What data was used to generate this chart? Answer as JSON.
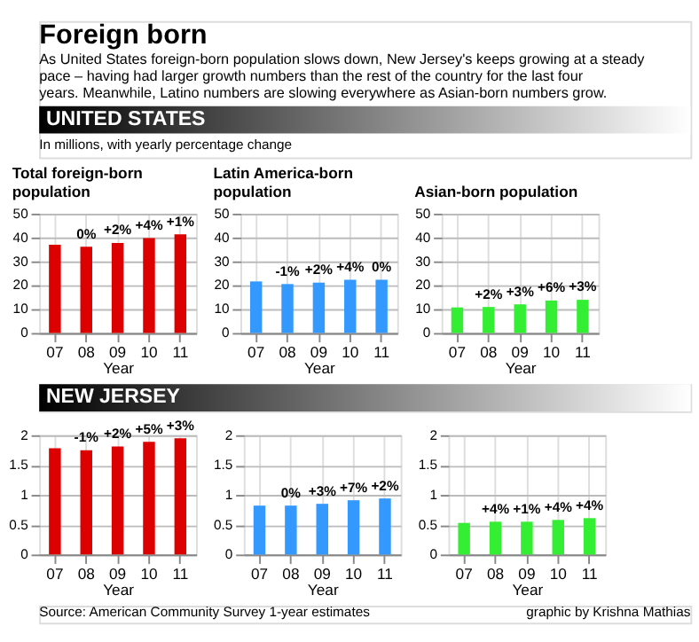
{
  "chart_data": [
    {
      "type": "bar",
      "title": "Total foreign-born population",
      "xlabel": "Year",
      "categories": [
        "07",
        "08",
        "09",
        "10",
        "11"
      ],
      "values": [
        37.0,
        36.1,
        37.7,
        39.8,
        41.3
      ],
      "color": "#dd0000",
      "ylim": [
        0,
        50
      ],
      "yticks": [
        0,
        10,
        20,
        30,
        40,
        50
      ],
      "grid": true,
      "annotations": [
        "Foreign born",
        "As United States foreign-born population slows down, New Jersey's keeps growing at a steady pace – having had larger growth numbers than the rest of the country for the last four years. Meanwhile, Latino numbers are slowing everywhere as Asian-born numbers grow.",
        "UNITED STATES",
        "In millions, with yearly percentage change",
        {
          "text": "0%",
          "x": "08",
          "y": 36.1
        },
        {
          "text": "+2%",
          "x": "09",
          "y": 37.7
        },
        {
          "text": "+4%",
          "x": "10",
          "y": 39.8
        },
        {
          "text": "+1%",
          "x": "11",
          "y": 41.3
        }
      ]
    },
    {
      "type": "bar",
      "title": "Latin America-born population",
      "xlabel": "Year",
      "categories": [
        "07",
        "08",
        "09",
        "10",
        "11"
      ],
      "values": [
        21.6,
        20.5,
        21.1,
        22.3,
        22.3
      ],
      "color": "#3399ff",
      "ylim": [
        0,
        50
      ],
      "yticks": [
        0,
        10,
        20,
        30,
        40,
        50
      ],
      "grid": true,
      "annotations": [
        {
          "text": "-1%",
          "x": "08",
          "y": 20.5
        },
        {
          "text": "+2%",
          "x": "09",
          "y": 21.1
        },
        {
          "text": "+4%",
          "x": "10",
          "y": 22.3
        },
        {
          "text": "0%",
          "x": "11",
          "y": 22.3
        }
      ]
    },
    {
      "type": "bar",
      "title": "Asian-born population",
      "xlabel": "Year",
      "categories": [
        "07",
        "08",
        "09",
        "10",
        "11"
      ],
      "values": [
        10.7,
        10.9,
        12.0,
        13.6,
        13.9
      ],
      "color": "#33ee33",
      "ylim": [
        0,
        50
      ],
      "yticks": [
        0,
        10,
        20,
        30,
        40,
        50
      ],
      "grid": true,
      "annotations": [
        {
          "text": "+2%",
          "x": "08",
          "y": 10.9
        },
        {
          "text": "+3%",
          "x": "09",
          "y": 12.0
        },
        {
          "text": "+6%",
          "x": "10",
          "y": 13.6
        },
        {
          "text": "+3%",
          "x": "11",
          "y": 13.9
        }
      ]
    },
    {
      "type": "bar",
      "xlabel": "Year",
      "categories": [
        "07",
        "08",
        "09",
        "10",
        "11"
      ],
      "values": [
        1.78,
        1.75,
        1.81,
        1.89,
        1.95
      ],
      "color": "#dd0000",
      "ylim": [
        0,
        2
      ],
      "yticks": [
        0,
        0.5,
        1,
        1.5,
        2
      ],
      "grid": true,
      "annotations": [
        "NEW JERSEY",
        "Source: American Community Survey 1-year estimates",
        {
          "text": "-1%",
          "x": "08",
          "y": 1.75
        },
        {
          "text": "+2%",
          "x": "09",
          "y": 1.81
        },
        {
          "text": "+5%",
          "x": "10",
          "y": 1.89
        },
        {
          "text": "+3%",
          "x": "11",
          "y": 1.95
        }
      ]
    },
    {
      "type": "bar",
      "xlabel": "Year",
      "categories": [
        "07",
        "08",
        "09",
        "10",
        "11"
      ],
      "values": [
        0.82,
        0.82,
        0.85,
        0.91,
        0.94
      ],
      "color": "#3399ff",
      "ylim": [
        0,
        2
      ],
      "yticks": [
        0,
        0.5,
        1,
        1.5,
        2
      ],
      "grid": true,
      "annotations": [
        {
          "text": "0%",
          "x": "08",
          "y": 0.82
        },
        {
          "text": "+3%",
          "x": "09",
          "y": 0.85
        },
        {
          "text": "+7%",
          "x": "10",
          "y": 0.91
        },
        {
          "text": "+2%",
          "x": "11",
          "y": 0.94
        }
      ]
    },
    {
      "type": "bar",
      "xlabel": "Year",
      "categories": [
        "07",
        "08",
        "09",
        "10",
        "11"
      ],
      "values": [
        0.53,
        0.55,
        0.55,
        0.58,
        0.61
      ],
      "color": "#33ee33",
      "ylim": [
        0,
        2
      ],
      "yticks": [
        0,
        0.5,
        1,
        1.5,
        2
      ],
      "grid": true,
      "annotations": [
        "graphic by Krishna Mathias",
        {
          "text": "+4%",
          "x": "08",
          "y": 0.55
        },
        {
          "text": "+1%",
          "x": "09",
          "y": 0.55
        },
        {
          "text": "+4%",
          "x": "10",
          "y": 0.58
        },
        {
          "text": "+4%",
          "x": "11",
          "y": 0.61
        }
      ]
    }
  ]
}
